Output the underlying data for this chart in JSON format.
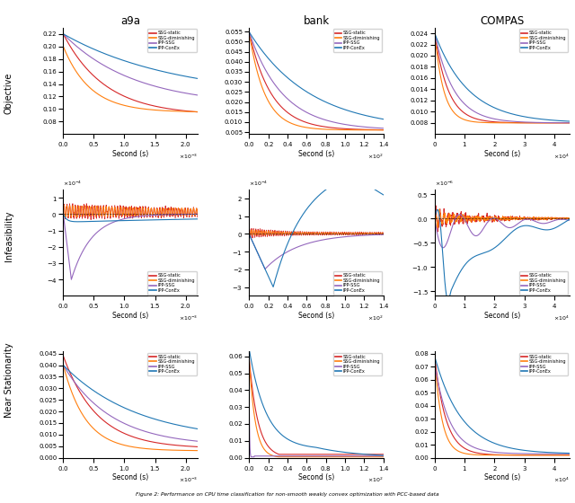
{
  "datasets": [
    "a9a",
    "bank",
    "COMPAS"
  ],
  "methods": [
    "SSG-static",
    "SSG-diminishing",
    "IPP-SSG",
    "IPP-ConEx"
  ],
  "colors": [
    "#d62728",
    "#ff7f0e",
    "#9467bd",
    "#1f77b4"
  ],
  "row_labels": [
    "Objective",
    "Infeasibility",
    "Near Stationarity"
  ],
  "x_max": {
    "a9a": 0.0022,
    "bank": 140.0,
    "COMPAS": 45000.0
  },
  "x_label": "Second (s)",
  "figure_caption": "Figure 2: Performance on CPU time classification for non-smooth weakly convex optimization with PCC-based data"
}
